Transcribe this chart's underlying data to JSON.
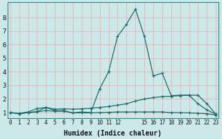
{
  "xlabel": "Humidex (Indice chaleur)",
  "background_color": "#cce8e8",
  "grid_color_major": "#e8b0b0",
  "line_color": "#1a6b6b",
  "x_values": [
    0,
    1,
    2,
    3,
    4,
    5,
    6,
    7,
    8,
    9,
    10,
    11,
    12,
    13,
    14,
    15,
    16,
    17,
    18,
    19,
    20,
    21,
    22,
    23
  ],
  "line1": [
    1.0,
    0.92,
    1.0,
    1.05,
    1.15,
    1.1,
    1.1,
    0.98,
    0.98,
    0.98,
    1.0,
    1.02,
    1.05,
    1.05,
    1.05,
    1.05,
    1.05,
    1.05,
    1.0,
    1.0,
    0.98,
    0.95,
    0.92,
    0.82
  ],
  "line2": [
    1.0,
    0.95,
    1.05,
    1.3,
    1.38,
    1.25,
    1.28,
    1.25,
    1.28,
    1.32,
    1.38,
    1.45,
    1.55,
    1.65,
    1.85,
    2.0,
    2.1,
    2.18,
    2.2,
    2.25,
    2.28,
    1.65,
    1.2,
    0.88
  ],
  "line3": [
    1.0,
    0.92,
    1.0,
    1.08,
    1.38,
    1.15,
    1.15,
    0.98,
    1.05,
    1.0,
    2.75,
    4.0,
    6.6,
    7.5,
    8.6,
    6.6,
    3.7,
    3.9,
    2.25,
    2.28,
    2.28,
    2.28,
    1.65,
    0.88
  ],
  "xlim": [
    -0.3,
    23.3
  ],
  "ylim": [
    0.6,
    9.1
  ],
  "yticks": [
    1,
    2,
    3,
    4,
    5,
    6,
    7,
    8
  ],
  "xtick_positions": [
    0,
    1,
    2,
    3,
    4,
    5,
    6,
    7,
    8,
    9,
    10,
    11,
    12,
    15,
    16,
    17,
    18,
    19,
    20,
    21,
    22,
    23
  ],
  "xtick_labels": [
    "0",
    "1",
    "2",
    "3",
    "4",
    "5",
    "6",
    "7",
    "8",
    "9",
    "10",
    "11",
    "12",
    "15",
    "16",
    "17",
    "18",
    "19",
    "20",
    "21",
    "22",
    "23"
  ]
}
